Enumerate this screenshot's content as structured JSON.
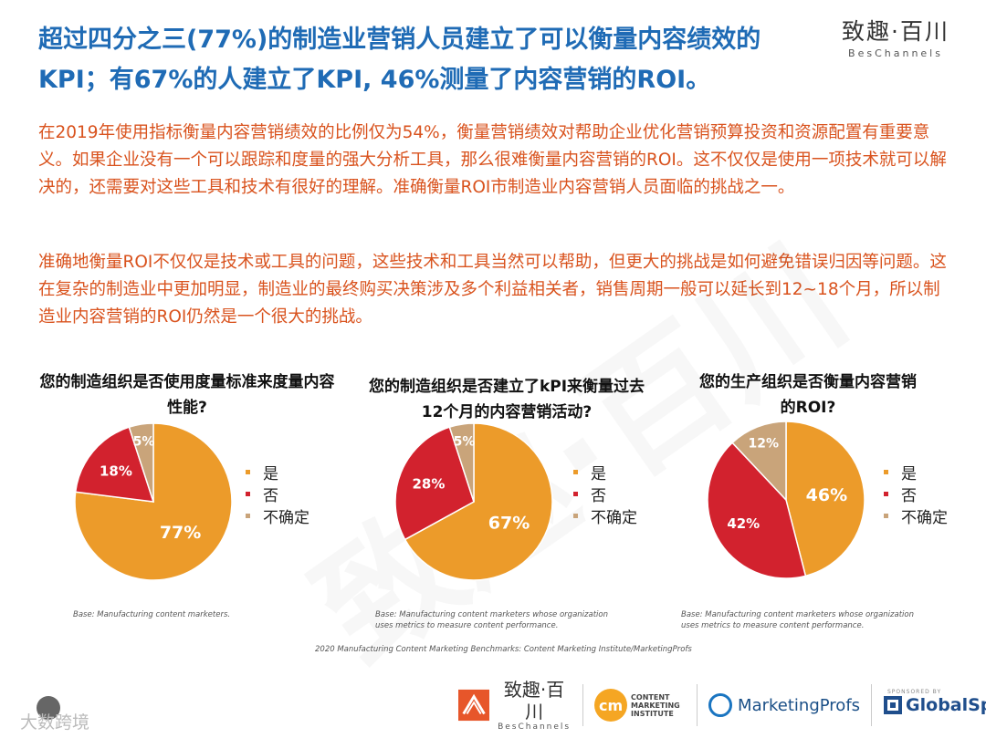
{
  "title": "超过四分之三(77%)的制造业营销人员建立了可以衡量内容绩效的KPI；有67%的人建立了KPI, 46%测量了内容营销的ROI。",
  "brand": {
    "cn": "致趣·百川",
    "en": "BesChannels"
  },
  "paragraph1": "在2019年使用指标衡量内容营销绩效的比例仅为54%，衡量营销绩效对帮助企业优化营销预算投资和资源配置有重要意义。如果企业没有一个可以跟踪和度量的强大分析工具，那么很难衡量内容营销的ROI。这不仅仅是使用一项技术就可以解决的，还需要对这些工具和技术有很好的理解。准确衡量ROI市制造业内容营销人员面临的挑战之一。",
  "paragraph2": "准确地衡量ROI不仅仅是技术或工具的问题，这些技术和工具当然可以帮助，但更大的挑战是如何避免错误归因等问题。这在复杂的制造业中更加明显，制造业的最终购买决策涉及多个利益相关者，销售周期一般可以延长到12~18个月，所以制造业内容营销的ROI仍然是一个很大的挑战。",
  "colors": {
    "yes": "#ec9b2a",
    "no": "#d2222e",
    "unsure": "#c9a47a",
    "title": "#1f6bb5",
    "body": "#d9531e"
  },
  "chart_data": [
    {
      "type": "pie",
      "title": "您的制造组织是否使用度量标准来度量内容性能?",
      "categories": [
        "是",
        "否",
        "不确定"
      ],
      "values": [
        77,
        18,
        5
      ],
      "labels": [
        "77%",
        "18%",
        "5%"
      ],
      "legend": "right",
      "base": "Base: Manufacturing content marketers."
    },
    {
      "type": "pie",
      "title": "您的制造组织是否建立了kPI来衡量过去12个月的内容营销活动?",
      "categories": [
        "是",
        "否",
        "不确定"
      ],
      "values": [
        67,
        28,
        5
      ],
      "labels": [
        "67%",
        "28%",
        "5%"
      ],
      "legend": "right",
      "base": "Base: Manufacturing content marketers whose organization uses metrics to measure content performance."
    },
    {
      "type": "pie",
      "title": "您的生产组织是否衡量内容营销的ROI?",
      "categories": [
        "是",
        "否",
        "不确定"
      ],
      "values": [
        46,
        42,
        12
      ],
      "labels": [
        "46%",
        "42%",
        "12%"
      ],
      "legend": "right",
      "base": "Base: Manufacturing content marketers whose organization uses metrics to measure content performance."
    }
  ],
  "source": "2020 Manufacturing Content Marketing Benchmarks: Content Marketing Institute/MarketingProfs",
  "footer": {
    "beschannels_cn": "致趣·百川",
    "beschannels_en": "BesChannels",
    "cmi_mark": "cm",
    "cmi_text": "CONTENT MARKETING INSTITUTE",
    "marketingprofs": "MarketingProfs",
    "sponsored": "SPONSORED BY",
    "globalspec": "GlobalSpec"
  },
  "corner_watermark": "大数跨境"
}
